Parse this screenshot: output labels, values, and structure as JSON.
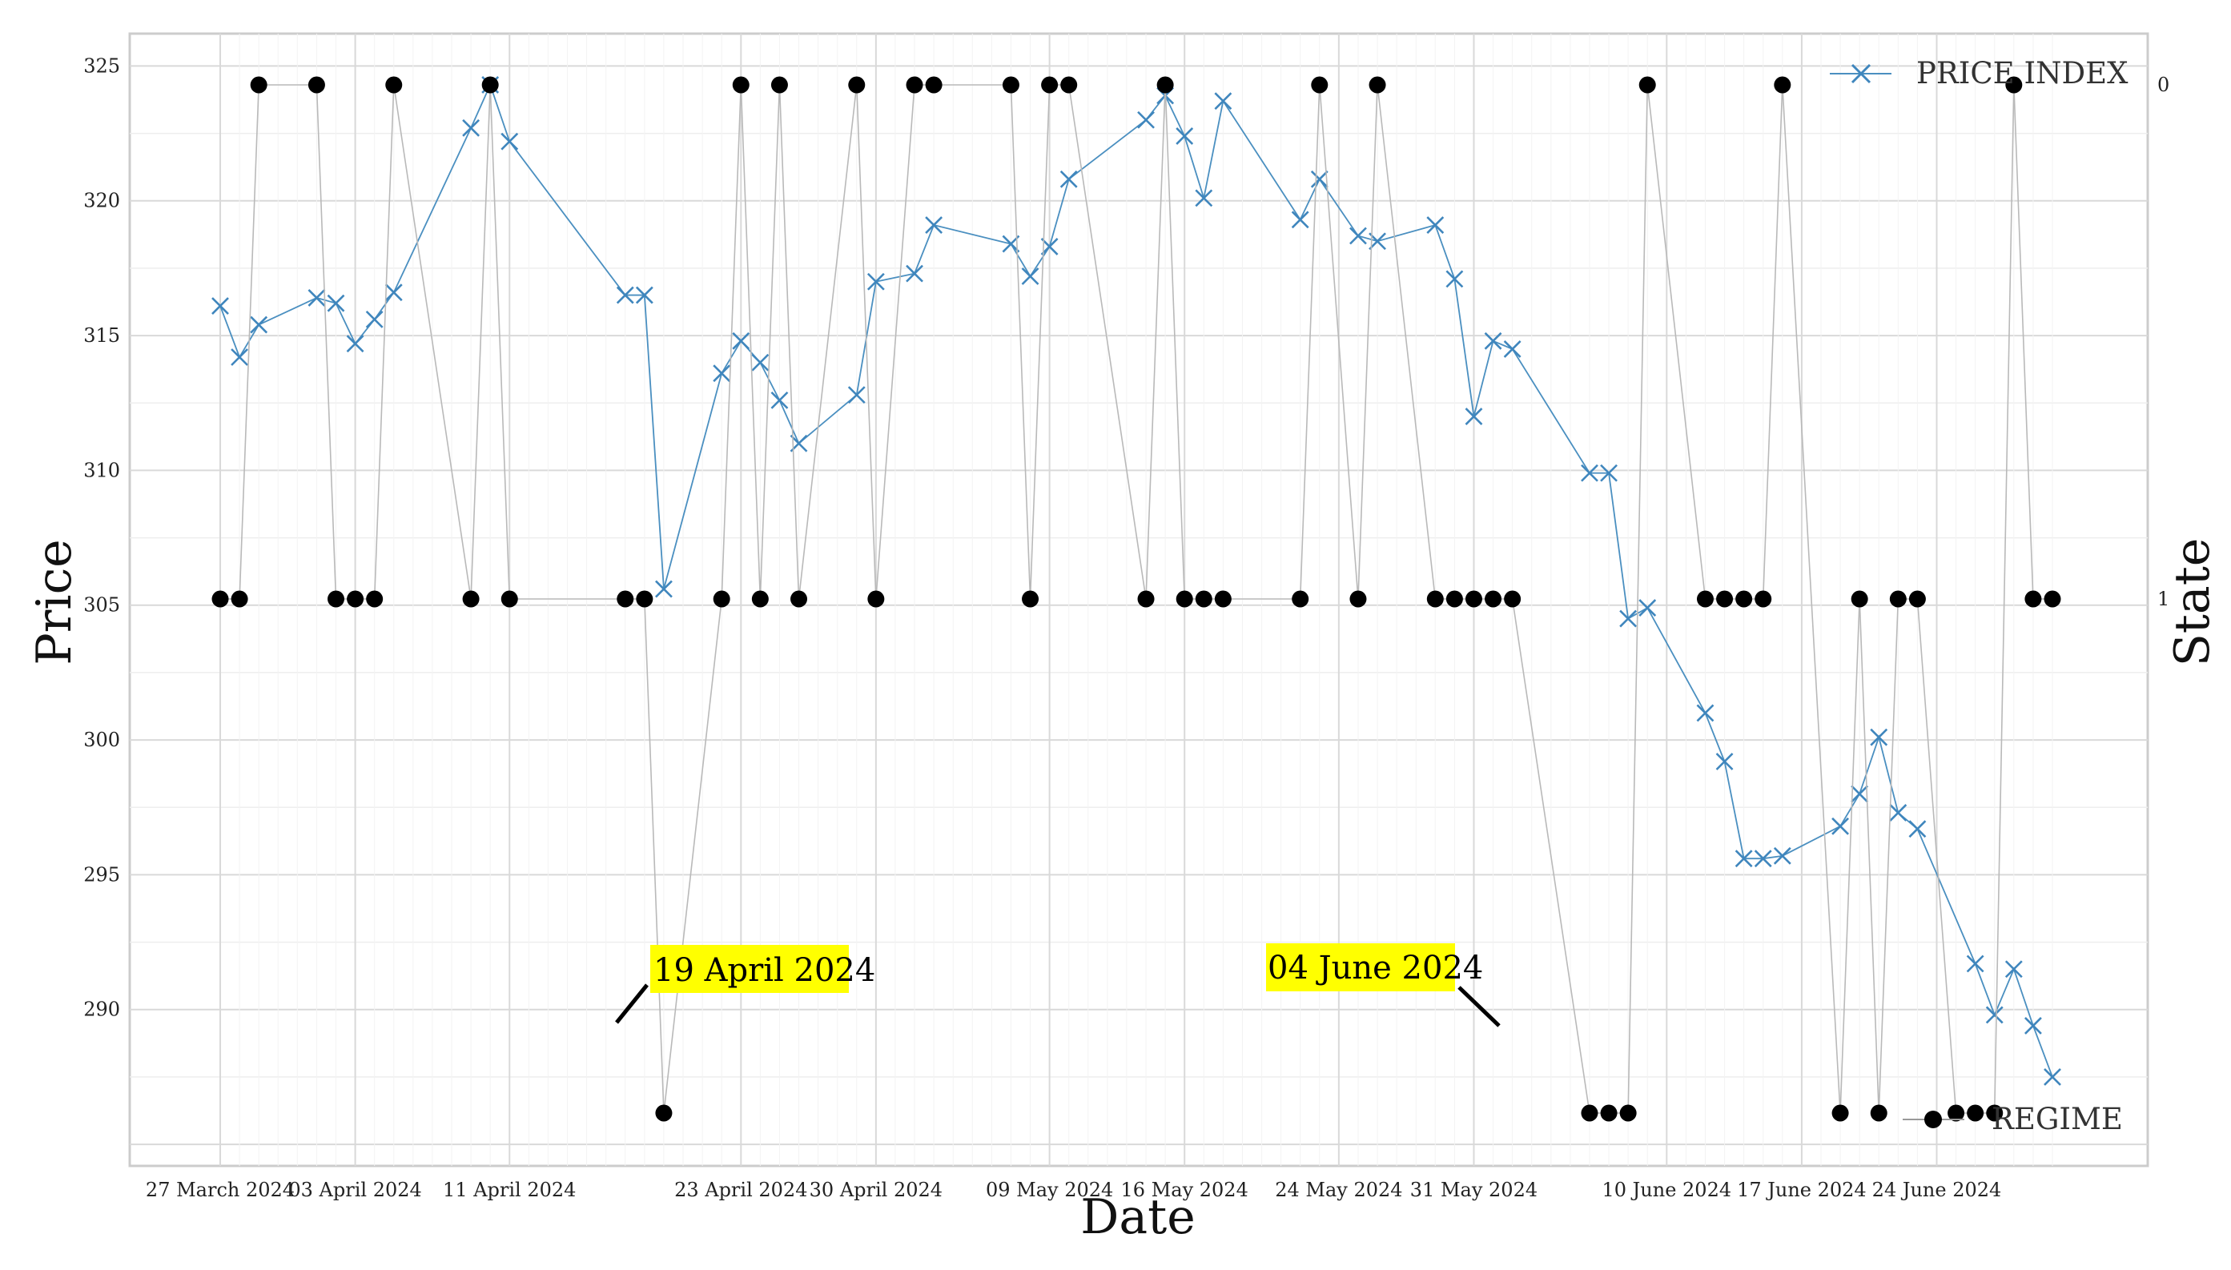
{
  "chart_data": {
    "type": "line",
    "xlabel": "Date",
    "ylabel": "Price",
    "y2label": "State",
    "ylim": [
      284.2,
      326.2
    ],
    "y_ticks": [
      290,
      295,
      300,
      305,
      310,
      315,
      320,
      325
    ],
    "y2_ticks": [
      0,
      1
    ],
    "x_ticks": [
      {
        "date": "2024-03-27",
        "label": "27 March 2024"
      },
      {
        "date": "2024-04-03",
        "label": "03 April 2024"
      },
      {
        "date": "2024-04-11",
        "label": "11 April 2024"
      },
      {
        "date": "2024-04-23",
        "label": "23 April 2024"
      },
      {
        "date": "2024-04-30",
        "label": "30 April 2024"
      },
      {
        "date": "2024-05-09",
        "label": "09 May 2024"
      },
      {
        "date": "2024-05-16",
        "label": "16 May 2024"
      },
      {
        "date": "2024-05-24",
        "label": "24 May 2024"
      },
      {
        "date": "2024-05-31",
        "label": "31 May 2024"
      },
      {
        "date": "2024-06-10",
        "label": "10 June 2024"
      },
      {
        "date": "2024-06-17",
        "label": "17 June 2024"
      },
      {
        "date": "2024-06-24",
        "label": "24 June 2024"
      }
    ],
    "grid": true,
    "legend_placement": "top-right",
    "series": [
      {
        "name": "PRICE INDEX",
        "color": "#4a8fc0",
        "marker": "x",
        "axis": "left",
        "points": [
          [
            "2024-03-27",
            316.1
          ],
          [
            "2024-03-28",
            314.2
          ],
          [
            "2024-03-29",
            315.4
          ],
          [
            "2024-04-01",
            316.4
          ],
          [
            "2024-04-02",
            316.2
          ],
          [
            "2024-04-03",
            314.7
          ],
          [
            "2024-04-04",
            315.6
          ],
          [
            "2024-04-05",
            316.6
          ],
          [
            "2024-04-09",
            322.7
          ],
          [
            "2024-04-10",
            324.3
          ],
          [
            "2024-04-11",
            322.2
          ],
          [
            "2024-04-17",
            316.5
          ],
          [
            "2024-04-18",
            316.5
          ],
          [
            "2024-04-19",
            305.6
          ],
          [
            "2024-04-22",
            313.6
          ],
          [
            "2024-04-23",
            314.8
          ],
          [
            "2024-04-24",
            314.0
          ],
          [
            "2024-04-25",
            312.6
          ],
          [
            "2024-04-26",
            311.0
          ],
          [
            "2024-04-29",
            312.8
          ],
          [
            "2024-04-30",
            317.0
          ],
          [
            "2024-05-02",
            317.3
          ],
          [
            "2024-05-03",
            319.1
          ],
          [
            "2024-05-07",
            318.4
          ],
          [
            "2024-05-08",
            317.2
          ],
          [
            "2024-05-09",
            318.3
          ],
          [
            "2024-05-10",
            320.8
          ],
          [
            "2024-05-14",
            323.0
          ],
          [
            "2024-05-15",
            323.9
          ],
          [
            "2024-05-16",
            322.4
          ],
          [
            "2024-05-17",
            320.1
          ],
          [
            "2024-05-18",
            323.7
          ],
          [
            "2024-05-22",
            319.3
          ],
          [
            "2024-05-23",
            320.8
          ],
          [
            "2024-05-25",
            318.7
          ],
          [
            "2024-05-26",
            318.5
          ],
          [
            "2024-05-29",
            319.1
          ],
          [
            "2024-05-30",
            317.1
          ],
          [
            "2024-05-31",
            312.0
          ],
          [
            "2024-06-01",
            314.8
          ],
          [
            "2024-06-02",
            314.5
          ],
          [
            "2024-06-06",
            309.9
          ],
          [
            "2024-06-07",
            309.9
          ],
          [
            "2024-06-08",
            304.5
          ],
          [
            "2024-06-09",
            304.9
          ],
          [
            "2024-06-12",
            301.0
          ],
          [
            "2024-06-13",
            299.2
          ],
          [
            "2024-06-14",
            295.6
          ],
          [
            "2024-06-15",
            295.6
          ],
          [
            "2024-06-16",
            295.7
          ],
          [
            "2024-06-19",
            296.8
          ],
          [
            "2024-06-20",
            298.0
          ],
          [
            "2024-06-21",
            300.1
          ],
          [
            "2024-06-22",
            297.3
          ],
          [
            "2024-06-23",
            296.7
          ],
          [
            "2024-06-26",
            291.7
          ],
          [
            "2024-06-27",
            289.8
          ],
          [
            "2024-06-28",
            291.5
          ],
          [
            "2024-06-29",
            289.4
          ],
          [
            "2024-06-30",
            287.5
          ]
        ]
      },
      {
        "name": "REGIME",
        "color": "#000000",
        "marker": "o",
        "axis": "right",
        "points": [
          [
            "2024-03-27",
            1
          ],
          [
            "2024-03-28",
            1
          ],
          [
            "2024-03-29",
            0
          ],
          [
            "2024-04-01",
            0
          ],
          [
            "2024-04-02",
            1
          ],
          [
            "2024-04-03",
            1
          ],
          [
            "2024-04-04",
            1
          ],
          [
            "2024-04-05",
            0
          ],
          [
            "2024-04-09",
            1
          ],
          [
            "2024-04-10",
            0
          ],
          [
            "2024-04-11",
            1
          ],
          [
            "2024-04-17",
            1
          ],
          [
            "2024-04-18",
            1
          ],
          [
            "2024-04-19",
            2
          ],
          [
            "2024-04-22",
            1
          ],
          [
            "2024-04-23",
            0
          ],
          [
            "2024-04-24",
            1
          ],
          [
            "2024-04-25",
            0
          ],
          [
            "2024-04-26",
            1
          ],
          [
            "2024-04-29",
            0
          ],
          [
            "2024-04-30",
            1
          ],
          [
            "2024-05-02",
            0
          ],
          [
            "2024-05-03",
            0
          ],
          [
            "2024-05-07",
            0
          ],
          [
            "2024-05-08",
            1
          ],
          [
            "2024-05-09",
            0
          ],
          [
            "2024-05-10",
            0
          ],
          [
            "2024-05-14",
            1
          ],
          [
            "2024-05-15",
            0
          ],
          [
            "2024-05-16",
            1
          ],
          [
            "2024-05-17",
            1
          ],
          [
            "2024-05-18",
            1
          ],
          [
            "2024-05-22",
            1
          ],
          [
            "2024-05-23",
            0
          ],
          [
            "2024-05-25",
            1
          ],
          [
            "2024-05-26",
            0
          ],
          [
            "2024-05-29",
            1
          ],
          [
            "2024-05-30",
            1
          ],
          [
            "2024-05-31",
            1
          ],
          [
            "2024-06-01",
            1
          ],
          [
            "2024-06-02",
            1
          ],
          [
            "2024-06-06",
            2
          ],
          [
            "2024-06-07",
            2
          ],
          [
            "2024-06-08",
            2
          ],
          [
            "2024-06-09",
            0
          ],
          [
            "2024-06-12",
            1
          ],
          [
            "2024-06-13",
            1
          ],
          [
            "2024-06-14",
            1
          ],
          [
            "2024-06-15",
            1
          ],
          [
            "2024-06-16",
            0
          ],
          [
            "2024-06-19",
            2
          ],
          [
            "2024-06-20",
            1
          ],
          [
            "2024-06-21",
            2
          ],
          [
            "2024-06-22",
            1
          ],
          [
            "2024-06-23",
            1
          ],
          [
            "2024-06-25",
            2
          ],
          [
            "2024-06-26",
            2
          ],
          [
            "2024-06-27",
            2
          ],
          [
            "2024-06-28",
            0
          ],
          [
            "2024-06-29",
            1
          ],
          [
            "2024-06-30",
            1
          ]
        ]
      }
    ],
    "annotations": [
      {
        "text": "19 April 2024",
        "background": "#ffff00"
      },
      {
        "text": "04 June 2024",
        "background": "#ffff00"
      }
    ]
  }
}
